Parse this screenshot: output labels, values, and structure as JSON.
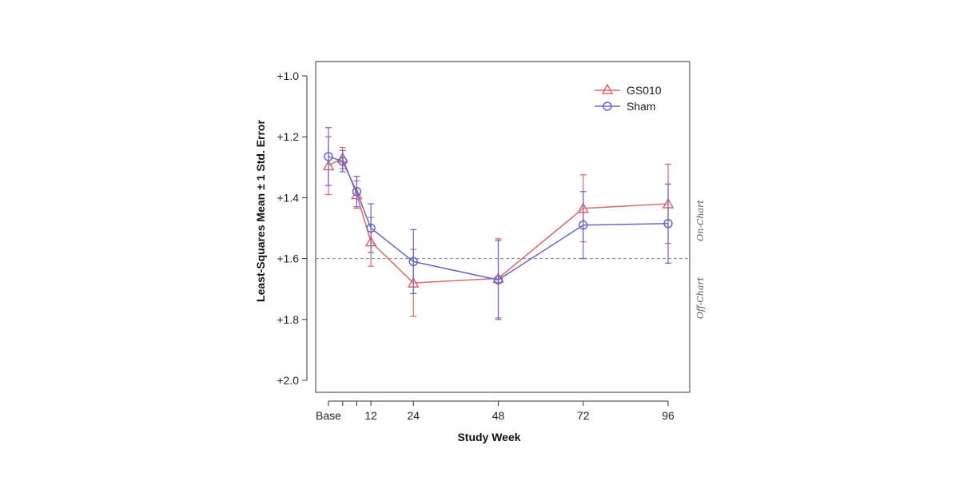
{
  "chart_data": {
    "type": "line",
    "xlabel": "Study Week",
    "ylabel": "Least-Squares Mean ± 1 Std. Error",
    "x_tick_labels": [
      "Base",
      "12",
      "24",
      "48",
      "72",
      "96"
    ],
    "x_minor_ticks": [
      4,
      8
    ],
    "y_ticks": [
      "+1.0",
      "+1.2",
      "+1.4",
      "+1.6",
      "+1.8",
      "+2.0"
    ],
    "ylim": [
      1.0,
      2.0
    ],
    "y_inverted": true,
    "xlim": [
      -4,
      100
    ],
    "reference_line": {
      "y": 1.6,
      "style": "dashed"
    },
    "zone_labels": {
      "above": "On-Chart",
      "below": "Off-Chart"
    },
    "legend_position": "top-right",
    "series": [
      {
        "name": "GS010",
        "color": "#e06666",
        "marker": "triangle",
        "x": [
          0,
          4,
          8,
          12,
          24,
          48,
          72,
          96
        ],
        "y": [
          1.295,
          1.27,
          1.39,
          1.545,
          1.68,
          1.665,
          1.435,
          1.42
        ],
        "err": [
          0.095,
          0.035,
          0.045,
          0.08,
          0.11,
          0.13,
          0.11,
          0.13
        ]
      },
      {
        "name": "Sham",
        "color": "#6666cc",
        "marker": "circle",
        "x": [
          0,
          4,
          8,
          12,
          24,
          48,
          72,
          96
        ],
        "y": [
          1.265,
          1.28,
          1.38,
          1.5,
          1.61,
          1.67,
          1.49,
          1.485
        ],
        "err": [
          0.095,
          0.035,
          0.05,
          0.08,
          0.105,
          0.13,
          0.11,
          0.13
        ]
      }
    ]
  }
}
